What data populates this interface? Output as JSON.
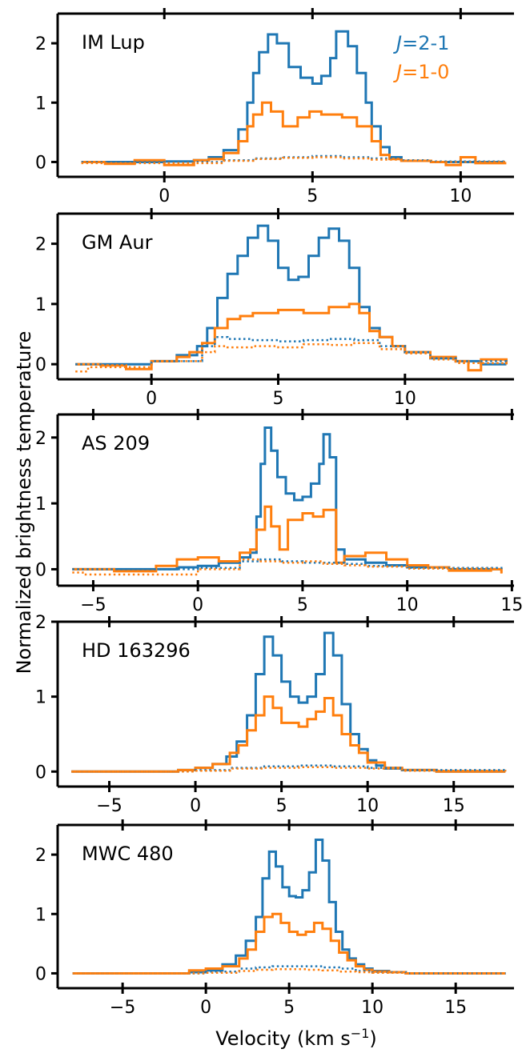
{
  "figure": {
    "ylabel": "Normalized brightness temperature",
    "xlabel_main": "Velocity (km s",
    "xlabel_sup": "−1",
    "xlabel_close": ")",
    "legend": [
      {
        "prefix": "J",
        "rest": "=2-1",
        "color": "#1f77b4"
      },
      {
        "prefix": "J",
        "rest": "=1-0",
        "color": "#ff7f0e"
      }
    ]
  },
  "chart_data": [
    {
      "type": "line",
      "name": "IM Lup",
      "xlim": [
        -3.6,
        11.8
      ],
      "ylim": [
        -0.25,
        2.5
      ],
      "xticks": [
        0,
        5,
        10
      ],
      "yticks": [
        0,
        1,
        2
      ],
      "series": [
        {
          "label": "J=2-1",
          "color": "#1f77b4",
          "style": "solid",
          "x": [
            -2.8,
            -1,
            0,
            1,
            1.5,
            2,
            2.5,
            2.8,
            3,
            3.2,
            3.5,
            3.8,
            4.2,
            4.6,
            5,
            5.3,
            5.6,
            5.8,
            6.2,
            6.5,
            6.8,
            7,
            7.3,
            7.6,
            8,
            9,
            10,
            11.5
          ],
          "y": [
            0,
            0,
            0.01,
            0.03,
            0.08,
            0.2,
            0.55,
            1.0,
            1.5,
            1.85,
            2.15,
            2.0,
            1.6,
            1.42,
            1.32,
            1.45,
            1.75,
            2.2,
            1.95,
            1.5,
            1.0,
            0.6,
            0.25,
            0.08,
            0.02,
            0,
            0,
            0
          ]
        },
        {
          "label": "J=1-0",
          "color": "#ff7f0e",
          "style": "solid",
          "x": [
            -2.8,
            -2,
            -1,
            0,
            1,
            1.5,
            2,
            2.5,
            2.8,
            3,
            3.3,
            3.6,
            4,
            4.5,
            4.9,
            5.3,
            6,
            6.5,
            7,
            7.3,
            7.6,
            8,
            9,
            9.5,
            10,
            10.5,
            11.5
          ],
          "y": [
            0,
            -0.03,
            0.03,
            -0.05,
            0.03,
            0.05,
            0.15,
            0.35,
            0.6,
            0.8,
            1.0,
            0.85,
            0.6,
            0.75,
            0.85,
            0.8,
            0.75,
            0.6,
            0.35,
            0.12,
            0.05,
            0.02,
            0,
            -0.05,
            0.08,
            -0.02,
            0
          ]
        },
        {
          "label": "J=2-1 (dotted)",
          "color": "#1f77b4",
          "style": "dotted",
          "x": [
            -2.8,
            0,
            2,
            3,
            4,
            5,
            6,
            7,
            8,
            9,
            11.5
          ],
          "y": [
            0,
            0,
            0.03,
            0.06,
            0.08,
            0.1,
            0.08,
            0.06,
            0.03,
            0.01,
            0
          ]
        },
        {
          "label": "J=1-0 (dotted)",
          "color": "#ff7f0e",
          "style": "dotted",
          "x": [
            -2.8,
            0,
            2,
            3,
            4,
            5,
            6,
            7,
            8,
            9,
            11.5
          ],
          "y": [
            -0.02,
            -0.02,
            0.02,
            0.05,
            0.07,
            0.08,
            0.06,
            0.04,
            0.02,
            0,
            0
          ]
        }
      ]
    },
    {
      "type": "line",
      "name": "GM Aur",
      "xlim": [
        -3.7,
        14.3
      ],
      "ylim": [
        -0.25,
        2.5
      ],
      "xticks": [
        0,
        5,
        10
      ],
      "yticks": [
        0,
        1,
        2
      ],
      "series": [
        {
          "label": "J=2-1",
          "color": "#1f77b4",
          "style": "solid",
          "x": [
            -3,
            -1,
            0,
            1,
            1.8,
            2.2,
            2.6,
            3,
            3.4,
            3.8,
            4.2,
            4.6,
            5,
            5.4,
            5.8,
            6.2,
            6.6,
            7,
            7.4,
            7.8,
            8.2,
            8.6,
            9,
            9.5,
            10,
            11,
            12,
            13,
            14
          ],
          "y": [
            0,
            0,
            0.05,
            0.15,
            0.3,
            0.6,
            1.1,
            1.5,
            1.8,
            2.1,
            2.3,
            2.05,
            1.6,
            1.4,
            1.45,
            1.8,
            2.1,
            2.25,
            2.05,
            1.6,
            0.95,
            0.6,
            0.45,
            0.3,
            0.2,
            0.1,
            0.05,
            0,
            0
          ]
        },
        {
          "label": "J=1-0",
          "color": "#ff7f0e",
          "style": "solid",
          "x": [
            -3,
            -2,
            -1,
            0,
            1,
            1.5,
            2,
            2.5,
            3,
            3.5,
            4,
            5,
            6,
            7,
            7.8,
            8.2,
            8.6,
            9,
            9.5,
            10,
            11,
            12,
            12.5,
            13,
            14
          ],
          "y": [
            0,
            -0.02,
            -0.08,
            0.05,
            0.12,
            0.2,
            0.35,
            0.6,
            0.75,
            0.8,
            0.85,
            0.9,
            0.85,
            0.95,
            1.0,
            0.85,
            0.55,
            0.45,
            0.3,
            0.2,
            0.12,
            0.05,
            -0.1,
            0.08,
            0
          ]
        },
        {
          "label": "J=2-1 (dotted)",
          "color": "#1f77b4",
          "style": "dotted",
          "x": [
            -3,
            0,
            2,
            2.5,
            3,
            4,
            5,
            6,
            7,
            8,
            9,
            10,
            11,
            12,
            14
          ],
          "y": [
            0,
            0.05,
            0.3,
            0.45,
            0.42,
            0.4,
            0.38,
            0.4,
            0.42,
            0.4,
            0.3,
            0.2,
            0.1,
            0.05,
            0
          ]
        },
        {
          "label": "J=1-0 (dotted)",
          "color": "#ff7f0e",
          "style": "dotted",
          "x": [
            -3,
            -2.5,
            0,
            2,
            2.5,
            3,
            4,
            5,
            6,
            7,
            8,
            9,
            10,
            11,
            12,
            14
          ],
          "y": [
            -0.12,
            -0.05,
            0.05,
            0.2,
            0.3,
            0.28,
            0.3,
            0.28,
            0.33,
            0.32,
            0.35,
            0.25,
            0.18,
            0.08,
            0.02,
            0
          ]
        }
      ]
    },
    {
      "type": "line",
      "name": "AS 209",
      "xlim": [
        -6.7,
        15.1
      ],
      "ylim": [
        -0.25,
        2.35
      ],
      "xticks": [
        -5,
        0,
        5,
        10,
        15
      ],
      "yticks": [
        0,
        1,
        2
      ],
      "series": [
        {
          "label": "J=2-1",
          "color": "#1f77b4",
          "style": "solid",
          "x": [
            -6,
            -3,
            -1,
            0,
            1,
            2,
            2.5,
            2.8,
            3,
            3.2,
            3.5,
            3.8,
            4.2,
            4.6,
            5,
            5.4,
            5.8,
            6,
            6.3,
            6.6,
            7,
            8,
            9,
            10,
            12,
            14.5
          ],
          "y": [
            0,
            0,
            0.03,
            0.05,
            0.1,
            0.18,
            0.25,
            0.8,
            1.6,
            2.15,
            1.8,
            1.4,
            1.15,
            1.05,
            1.1,
            1.3,
            1.6,
            2.05,
            1.7,
            0.3,
            0.15,
            0.1,
            0.06,
            0.03,
            0,
            0
          ]
        },
        {
          "label": "J=1-0",
          "color": "#ff7f0e",
          "style": "solid",
          "x": [
            -6,
            -4,
            -2,
            -1,
            0,
            1,
            2,
            2.5,
            2.8,
            3.2,
            3.5,
            3.9,
            4.3,
            5,
            5.5,
            6,
            6.6,
            7,
            8,
            9,
            10,
            11,
            12,
            14,
            14.5
          ],
          "y": [
            0,
            -0.03,
            0.05,
            0.15,
            0.18,
            0.12,
            0.25,
            0.3,
            0.6,
            0.95,
            0.65,
            0.3,
            0.75,
            0.85,
            0.8,
            0.9,
            0.1,
            0.2,
            0.25,
            0.15,
            0.06,
            0.03,
            -0.02,
            0,
            -0.06
          ]
        },
        {
          "label": "J=2-1 (dotted)",
          "color": "#1f77b4",
          "style": "dotted",
          "x": [
            -6,
            0,
            2,
            3,
            4,
            5,
            6,
            7,
            8,
            10,
            14.5
          ],
          "y": [
            0,
            0.02,
            0.12,
            0.15,
            0.12,
            0.1,
            0.1,
            0.08,
            0.05,
            0.02,
            0
          ]
        },
        {
          "label": "J=1-0 (dotted)",
          "color": "#ff7f0e",
          "style": "dotted",
          "x": [
            -6,
            -5.5,
            0,
            2,
            3,
            4,
            5,
            6,
            7,
            8,
            10,
            14,
            14.5
          ],
          "y": [
            -0.05,
            -0.08,
            0,
            0.15,
            0.12,
            0.1,
            0.12,
            0.08,
            0.06,
            0.04,
            0.01,
            0,
            -0.08
          ]
        }
      ]
    },
    {
      "type": "line",
      "name": "HD 163296",
      "xlim": [
        -8.0,
        18.5
      ],
      "ylim": [
        -0.2,
        2.0
      ],
      "xticks": [
        -5,
        0,
        5,
        10,
        15
      ],
      "yticks": [
        0,
        1,
        2
      ],
      "series": [
        {
          "label": "J=2-1",
          "color": "#1f77b4",
          "style": "solid",
          "x": [
            -7.2,
            -3,
            -1,
            0,
            1,
            1.8,
            2.4,
            3,
            3.5,
            4,
            4.5,
            5,
            5.5,
            6,
            6.5,
            7,
            7.5,
            8,
            8.5,
            9,
            9.5,
            10,
            10.5,
            11,
            12,
            14,
            18
          ],
          "y": [
            0,
            0,
            0.02,
            0.05,
            0.1,
            0.2,
            0.4,
            0.75,
            1.3,
            1.8,
            1.55,
            1.2,
            1.0,
            0.92,
            1.0,
            1.3,
            1.85,
            1.55,
            0.9,
            0.5,
            0.3,
            0.15,
            0.08,
            0.04,
            0.02,
            0,
            0
          ]
        },
        {
          "label": "J=1-0",
          "color": "#ff7f0e",
          "style": "solid",
          "x": [
            -7.2,
            -3,
            -1,
            0,
            1,
            2,
            2.5,
            3,
            3.5,
            4,
            4.5,
            5,
            6,
            6.5,
            7,
            7.5,
            8,
            8.5,
            9,
            9.5,
            10,
            11,
            12,
            14,
            18
          ],
          "y": [
            0,
            0,
            0.02,
            0.05,
            0.1,
            0.25,
            0.35,
            0.55,
            0.75,
            1.0,
            0.85,
            0.65,
            0.6,
            0.7,
            0.8,
            0.98,
            0.75,
            0.5,
            0.35,
            0.25,
            0.12,
            0.05,
            0.02,
            0,
            0
          ]
        },
        {
          "label": "J=2-1 (dotted)",
          "color": "#1f77b4",
          "style": "dotted",
          "x": [
            -7.2,
            0,
            2,
            4,
            6,
            8,
            10,
            12,
            18
          ],
          "y": [
            0,
            0.02,
            0.05,
            0.07,
            0.08,
            0.07,
            0.05,
            0.02,
            0
          ]
        },
        {
          "label": "J=1-0 (dotted)",
          "color": "#ff7f0e",
          "style": "dotted",
          "x": [
            -7.2,
            0,
            2,
            4,
            6,
            8,
            10,
            12,
            18
          ],
          "y": [
            0,
            0.01,
            0.04,
            0.05,
            0.06,
            0.05,
            0.04,
            0.01,
            0
          ]
        }
      ]
    },
    {
      "type": "line",
      "name": "MWC 480",
      "xlim": [
        -8.9,
        18.5
      ],
      "ylim": [
        -0.25,
        2.5
      ],
      "xticks": [
        -5,
        0,
        5,
        10,
        15
      ],
      "yticks": [
        0,
        1,
        2
      ],
      "series": [
        {
          "label": "J=2-1",
          "color": "#1f77b4",
          "style": "solid",
          "x": [
            -8,
            -3,
            -1,
            0,
            1,
            1.8,
            2.4,
            3,
            3.4,
            3.8,
            4.2,
            4.6,
            5,
            5.4,
            5.8,
            6.2,
            6.6,
            7,
            7.4,
            7.8,
            8.2,
            8.6,
            9,
            9.5,
            10,
            11,
            12,
            14,
            18
          ],
          "y": [
            0,
            0,
            0.02,
            0.05,
            0.15,
            0.3,
            0.55,
            0.95,
            1.6,
            2.05,
            1.8,
            1.45,
            1.3,
            1.28,
            1.4,
            1.7,
            2.25,
            1.9,
            1.2,
            0.7,
            0.4,
            0.25,
            0.15,
            0.08,
            0.04,
            0.02,
            0,
            0,
            0
          ]
        },
        {
          "label": "J=1-0",
          "color": "#ff7f0e",
          "style": "solid",
          "x": [
            -8,
            -3,
            -1,
            0,
            1,
            2,
            2.5,
            3,
            3.5,
            4,
            4.5,
            5,
            5.5,
            6,
            6.5,
            7,
            7.5,
            8,
            8.5,
            9,
            9.5,
            10,
            11,
            12,
            14,
            18
          ],
          "y": [
            0,
            0,
            0.05,
            0.08,
            0.12,
            0.25,
            0.4,
            0.7,
            0.95,
            1.0,
            0.85,
            0.7,
            0.65,
            0.7,
            0.85,
            0.75,
            0.55,
            0.35,
            0.22,
            0.12,
            0.06,
            0.03,
            0.02,
            0,
            0,
            0
          ]
        },
        {
          "label": "J=2-1 (dotted)",
          "color": "#1f77b4",
          "style": "dotted",
          "x": [
            -8,
            0,
            2,
            3,
            4,
            5,
            6,
            7,
            8,
            9,
            10,
            12,
            18
          ],
          "y": [
            0,
            0.03,
            0.08,
            0.1,
            0.12,
            0.12,
            0.12,
            0.1,
            0.08,
            0.04,
            0.02,
            0,
            0
          ]
        },
        {
          "label": "J=1-0 (dotted)",
          "color": "#ff7f0e",
          "style": "dotted",
          "x": [
            -8,
            0,
            2,
            3,
            4,
            5,
            6,
            7,
            8,
            9,
            10,
            12,
            18
          ],
          "y": [
            0,
            0.01,
            0.04,
            0.06,
            0.07,
            0.07,
            0.06,
            0.05,
            0.03,
            0.02,
            0.01,
            0,
            0
          ]
        }
      ]
    }
  ]
}
